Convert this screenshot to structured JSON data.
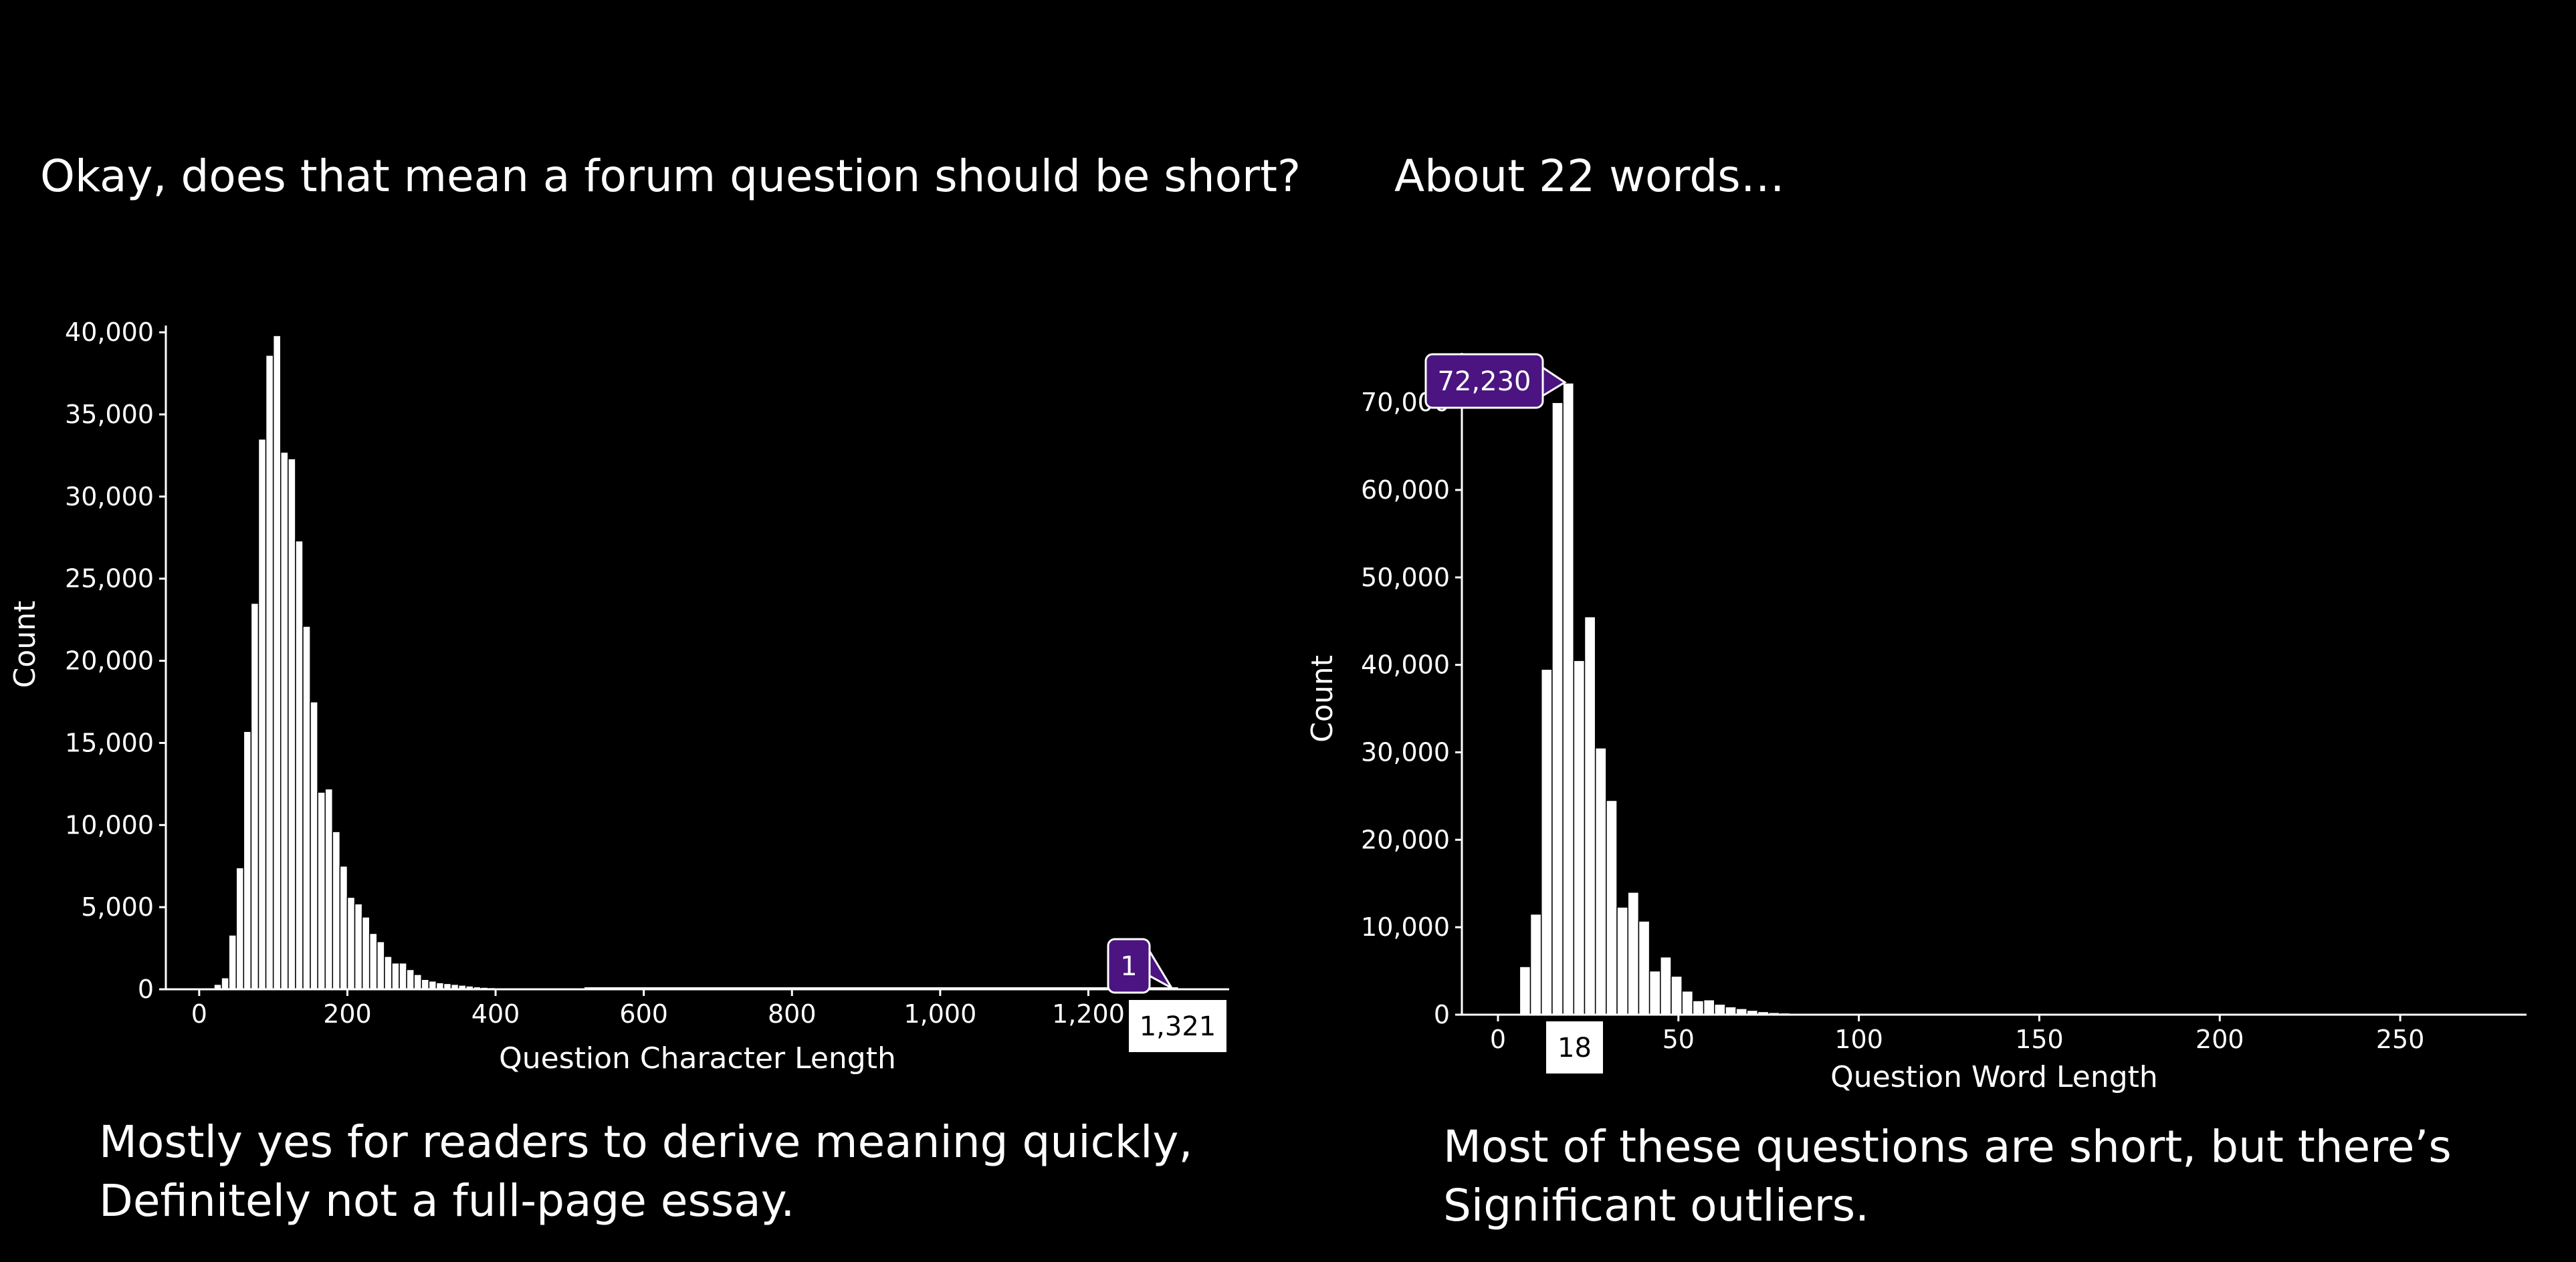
{
  "slide": {
    "left_title": "Okay, does that mean a forum question should be short?",
    "right_title": "About 22 words…",
    "left_caption": [
      "Mostly yes for readers to derive meaning quickly,",
      "Definitely not a full-page essay."
    ],
    "right_caption": [
      "Most of these questions are short, but there’s",
      "Significant outliers."
    ]
  },
  "colors": {
    "background": "#000000",
    "bar": "#ffffff",
    "tooltip": "#4b1480",
    "axis_label_box": "#ffffff"
  },
  "chart_data": [
    {
      "type": "bar",
      "xlabel": "Question Character Length",
      "ylabel": "Count",
      "xlim": [
        -45,
        1390
      ],
      "ylim": [
        0,
        42000
      ],
      "xticks": [
        0,
        200,
        400,
        600,
        800,
        1000,
        1200
      ],
      "xtick_labels": [
        "0",
        "200",
        "400",
        "600",
        "800",
        "1,000",
        "1,200"
      ],
      "yticks": [
        0,
        5000,
        10000,
        15000,
        20000,
        25000,
        30000,
        35000,
        40000
      ],
      "ytick_labels": [
        "0",
        "5,000",
        "10,000",
        "15,000",
        "20,000",
        "25,000",
        "30,000",
        "35,000",
        "40,000"
      ],
      "bin_width": 10,
      "bin_start": 20,
      "values": [
        300,
        700,
        3300,
        7400,
        15700,
        23500,
        33500,
        38600,
        39800,
        32700,
        32300,
        27300,
        22100,
        17500,
        12000,
        12200,
        9600,
        7500,
        5600,
        5200,
        4400,
        3400,
        2900,
        2000,
        1600,
        1600,
        1200,
        900,
        600,
        500,
        400,
        350,
        300,
        250,
        200,
        150,
        120,
        100,
        80,
        70,
        60,
        50,
        40,
        30,
        30,
        25,
        20,
        20,
        15,
        15
      ],
      "tail_to": 1321,
      "tail_value": 1,
      "tooltip_value": "1",
      "axis_callout": "1,321",
      "grid": false
    },
    {
      "type": "bar",
      "xlabel": "Question Word Length",
      "ylabel": "Count",
      "xlim": [
        -10,
        285
      ],
      "ylim": [
        0,
        72230
      ],
      "xticks": [
        0,
        50,
        100,
        150,
        200,
        250
      ],
      "xtick_labels": [
        "0",
        "50",
        "100",
        "150",
        "200",
        "250"
      ],
      "yticks": [
        0,
        10000,
        20000,
        30000,
        40000,
        50000,
        60000,
        70000
      ],
      "ytick_labels": [
        "0",
        "10,000",
        "20,000",
        "30,000",
        "40,000",
        "50,000",
        "60,000",
        "70,000"
      ],
      "bin_width": 3,
      "bin_start": 6,
      "values": [
        5500,
        11500,
        39500,
        70000,
        72230,
        40500,
        45500,
        30500,
        24500,
        12300,
        14000,
        10700,
        5000,
        6600,
        4400,
        2700,
        1600,
        1700,
        1200,
        900,
        700,
        500,
        350,
        250,
        200,
        150,
        120,
        100,
        80,
        60
      ],
      "tooltip_value": "72,230",
      "axis_callout": "18",
      "grid": false
    }
  ]
}
